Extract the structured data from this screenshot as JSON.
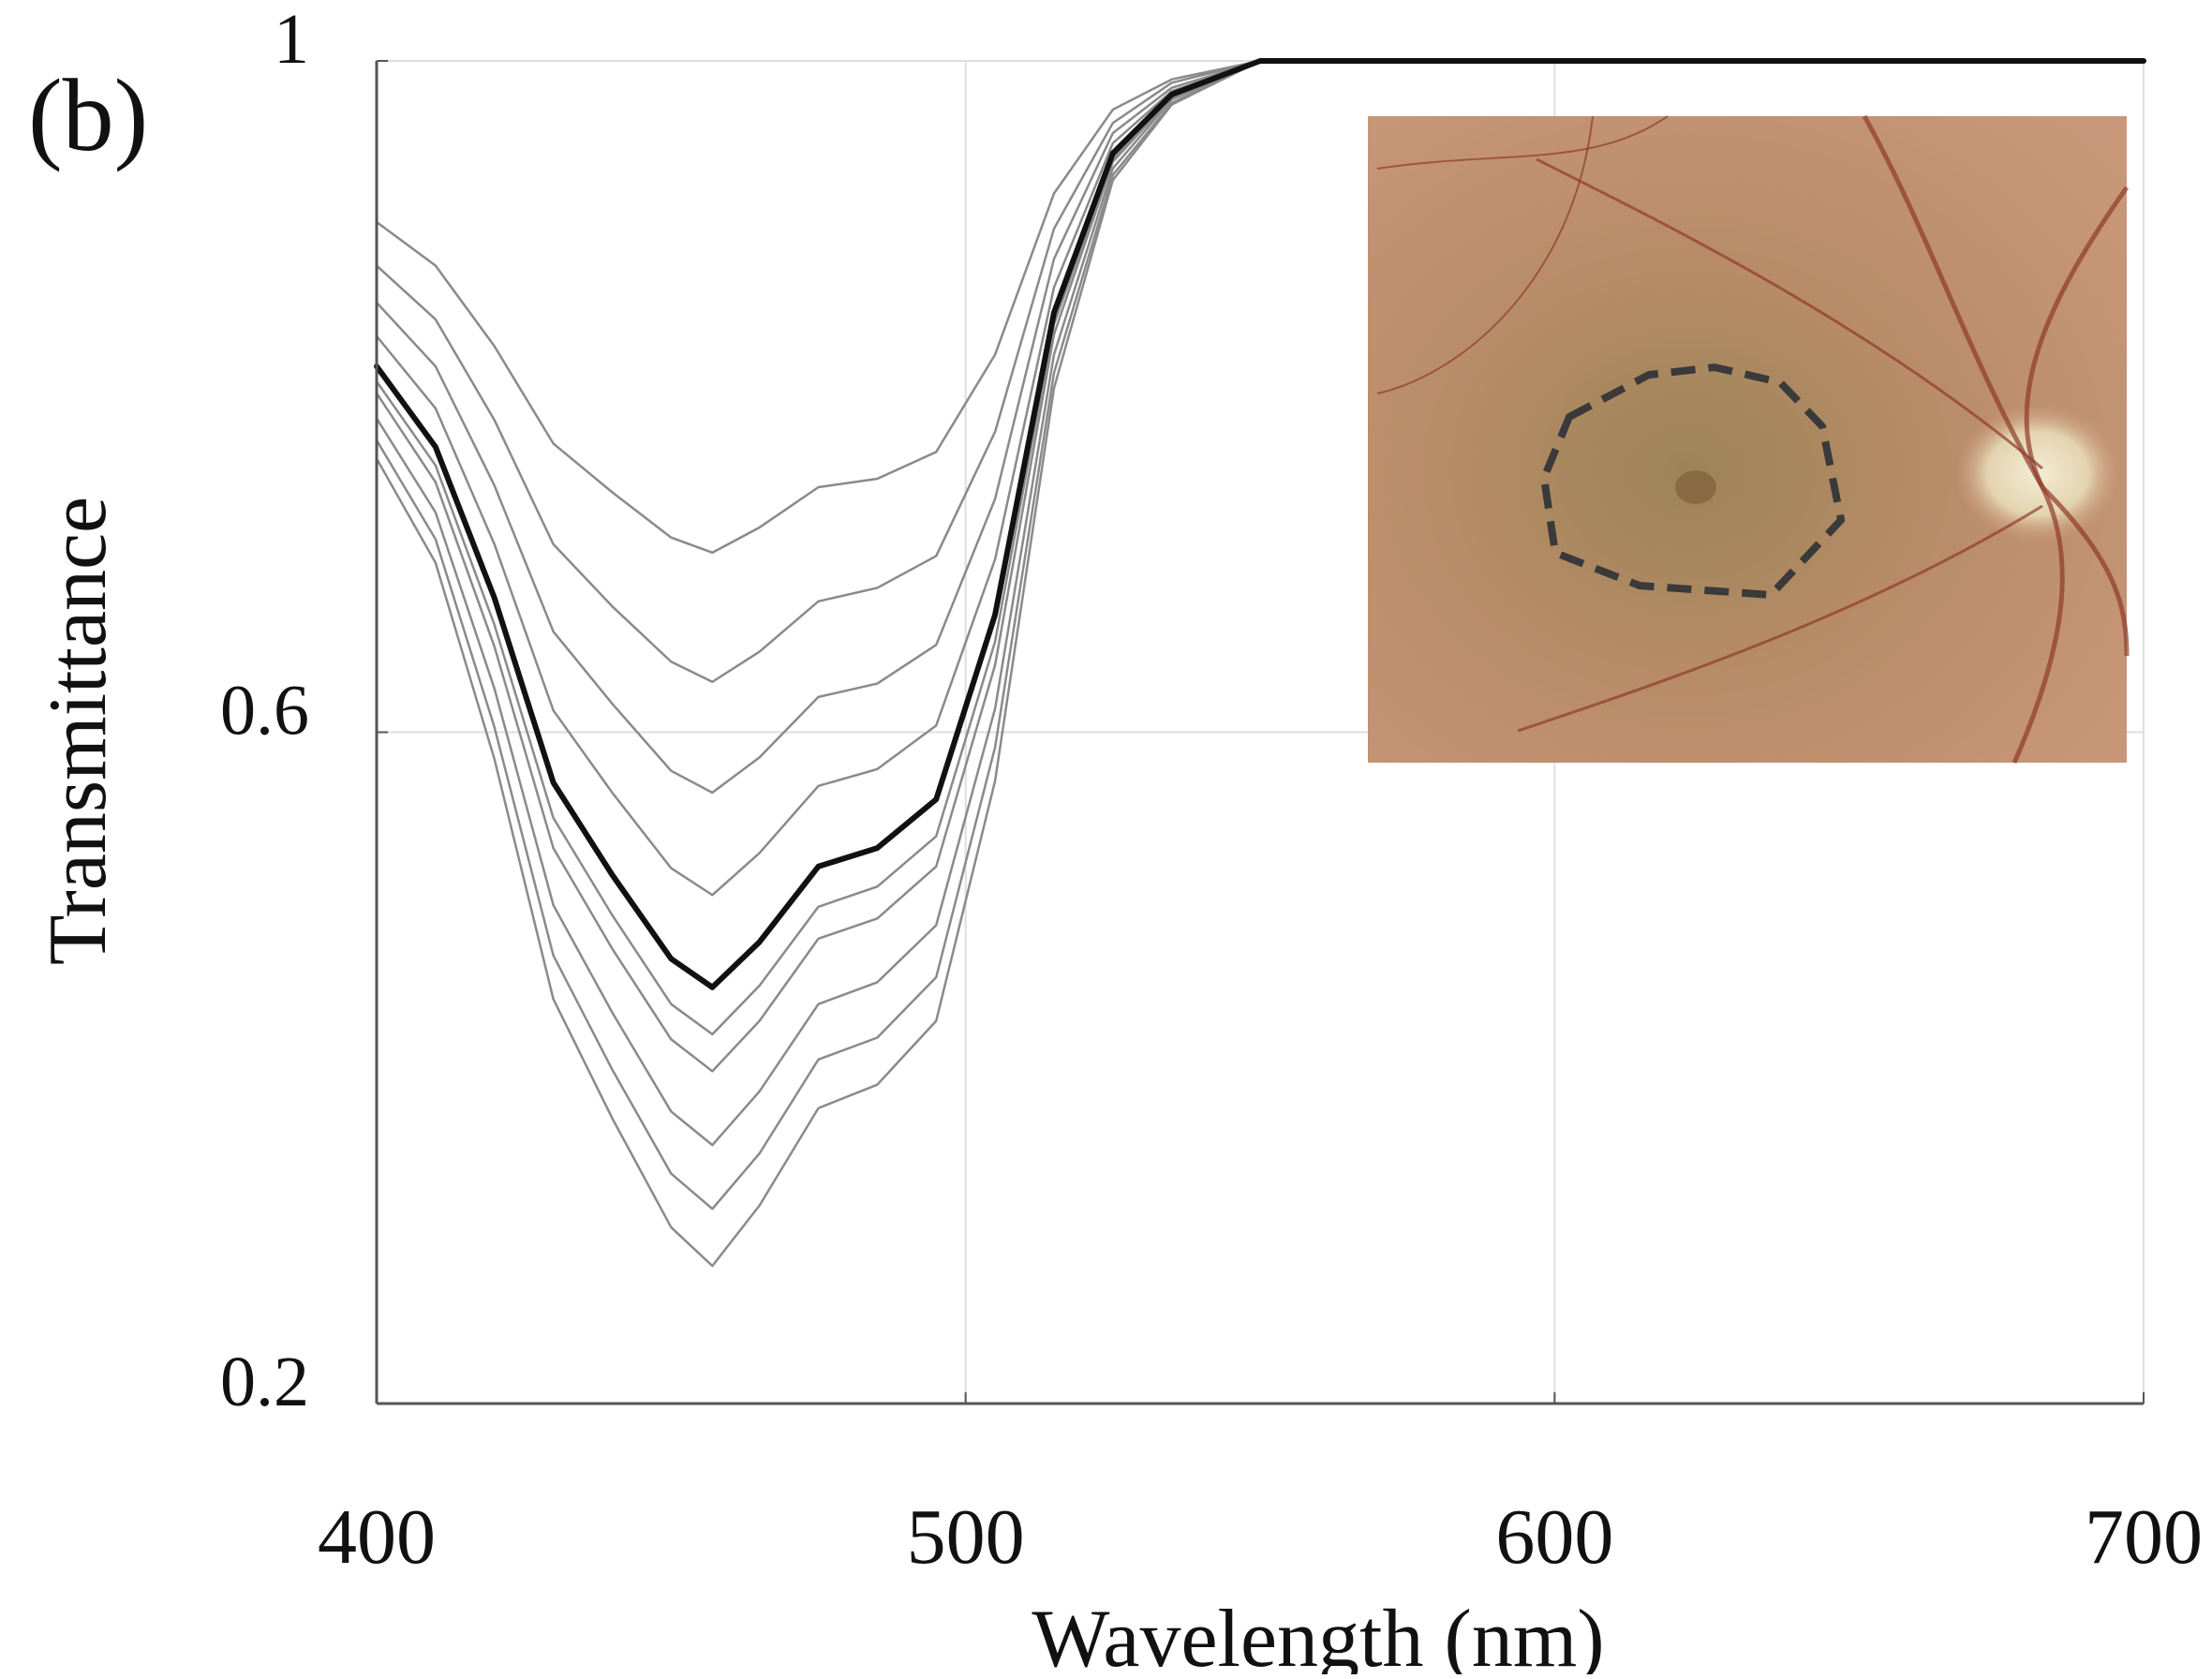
{
  "chart_data": {
    "type": "line",
    "title": "(b)",
    "xlabel": "Wavelength (nm)",
    "ylabel": "Transmittance",
    "x": [
      400,
      410,
      420,
      430,
      440,
      450,
      457,
      465,
      475,
      485,
      495,
      505,
      515,
      525,
      535,
      550,
      700
    ],
    "xlim": [
      400,
      700
    ],
    "xticks": [
      400,
      500,
      600,
      700
    ],
    "ylim": [
      0.2,
      1
    ],
    "yticks": [
      0.2,
      0.6,
      1
    ],
    "grid": true,
    "series": [
      {
        "color": "#8a8a8a",
        "values": [
          0.904,
          0.878,
          0.83,
          0.772,
          0.743,
          0.716,
          0.707,
          0.722,
          0.746,
          0.751,
          0.767,
          0.825,
          0.921,
          0.971,
          0.989,
          1,
          1
        ]
      },
      {
        "color": "#8a8a8a",
        "values": [
          0.878,
          0.846,
          0.786,
          0.712,
          0.675,
          0.642,
          0.63,
          0.648,
          0.678,
          0.686,
          0.705,
          0.779,
          0.9,
          0.963,
          0.987,
          1,
          1
        ]
      },
      {
        "color": "#8a8a8a",
        "values": [
          0.856,
          0.818,
          0.747,
          0.66,
          0.617,
          0.577,
          0.564,
          0.585,
          0.621,
          0.629,
          0.652,
          0.739,
          0.882,
          0.957,
          0.984,
          1,
          1
        ]
      },
      {
        "color": "#8a8a8a",
        "values": [
          0.836,
          0.793,
          0.712,
          0.613,
          0.564,
          0.519,
          0.503,
          0.528,
          0.568,
          0.578,
          0.604,
          0.703,
          0.865,
          0.951,
          0.982,
          1,
          1
        ]
      },
      {
        "color": "#8a8a8a",
        "values": [
          0.809,
          0.759,
          0.664,
          0.549,
          0.491,
          0.438,
          0.42,
          0.449,
          0.496,
          0.508,
          0.538,
          0.654,
          0.843,
          0.942,
          0.979,
          1,
          1
        ]
      },
      {
        "color": "#8a8a8a",
        "values": [
          0.802,
          0.749,
          0.651,
          0.531,
          0.471,
          0.417,
          0.398,
          0.428,
          0.477,
          0.489,
          0.52,
          0.64,
          0.837,
          0.94,
          0.978,
          1,
          1
        ]
      },
      {
        "color": "#8a8a8a",
        "values": [
          0.787,
          0.731,
          0.626,
          0.497,
          0.433,
          0.374,
          0.354,
          0.386,
          0.438,
          0.451,
          0.485,
          0.614,
          0.825,
          0.936,
          0.977,
          1,
          1
        ]
      },
      {
        "color": "#8a8a8a",
        "values": [
          0.774,
          0.715,
          0.603,
          0.467,
          0.399,
          0.337,
          0.316,
          0.349,
          0.405,
          0.418,
          0.454,
          0.591,
          0.814,
          0.932,
          0.975,
          1,
          1
        ]
      },
      {
        "color": "#8a8a8a",
        "values": [
          0.763,
          0.701,
          0.584,
          0.441,
          0.37,
          0.305,
          0.282,
          0.318,
          0.376,
          0.39,
          0.428,
          0.571,
          0.805,
          0.929,
          0.974,
          1,
          1
        ]
      },
      {
        "color": "#111111",
        "values": [
          0.818,
          0.77,
          0.68,
          0.57,
          0.515,
          0.465,
          0.448,
          0.475,
          0.52,
          0.531,
          0.56,
          0.67,
          0.85,
          0.945,
          0.98,
          1,
          1
        ]
      }
    ]
  }
}
